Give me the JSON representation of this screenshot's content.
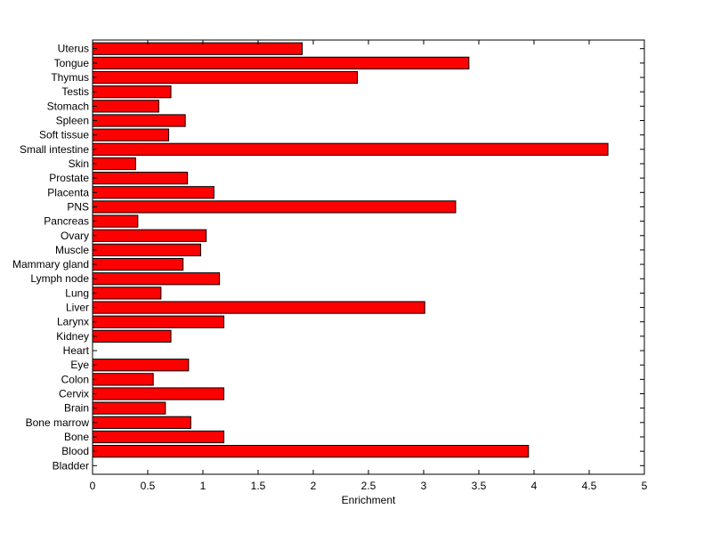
{
  "chart_data": {
    "type": "bar",
    "orientation": "horizontal",
    "title": "",
    "xlabel": "Enrichment",
    "ylabel": "",
    "xlim": [
      0,
      5
    ],
    "xticks": [
      "0",
      "0.5",
      "1",
      "1.5",
      "2",
      "2.5",
      "3",
      "3.5",
      "4",
      "4.5",
      "5"
    ],
    "grid": false,
    "legend": "none",
    "bar_color": "#ff0000",
    "bar_edge_color": "#000000",
    "categories": [
      "Uterus",
      "Tongue",
      "Thymus",
      "Testis",
      "Stomach",
      "Spleen",
      "Soft tissue",
      "Small intestine",
      "Skin",
      "Prostate",
      "Placenta",
      "PNS",
      "Pancreas",
      "Ovary",
      "Muscle",
      "Mammary gland",
      "Lymph node",
      "Lung",
      "Liver",
      "Larynx",
      "Kidney",
      "Heart",
      "Eye",
      "Colon",
      "Cervix",
      "Brain",
      "Bone marrow",
      "Bone",
      "Blood",
      "Bladder"
    ],
    "values": [
      1.9,
      3.41,
      2.4,
      0.71,
      0.6,
      0.84,
      0.69,
      4.67,
      0.39,
      0.86,
      1.1,
      3.29,
      0.41,
      1.03,
      0.98,
      0.82,
      1.15,
      0.62,
      3.01,
      1.19,
      0.71,
      0,
      0.87,
      0.55,
      1.19,
      0.66,
      0.89,
      1.19,
      3.95,
      0
    ]
  }
}
